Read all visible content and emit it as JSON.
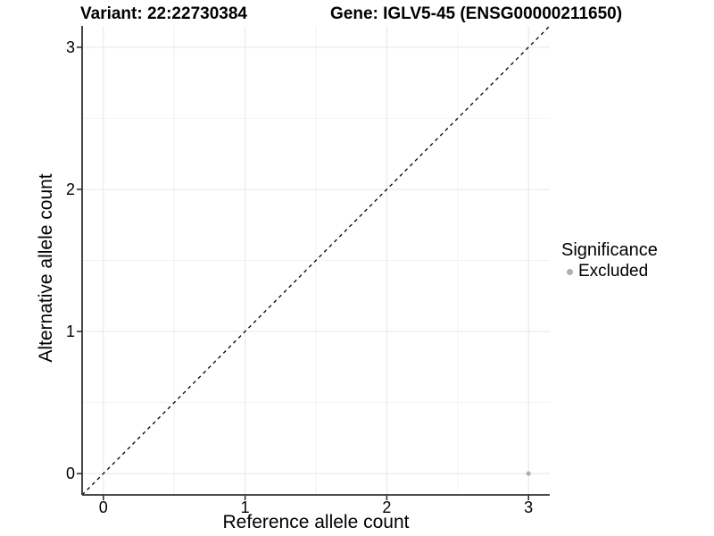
{
  "chart_data": {
    "type": "scatter",
    "title_left": "Variant: 22:22730384",
    "title_right": "Gene: IGLV5-45 (ENSG00000211650)",
    "xlabel": "Reference allele count",
    "ylabel": "Alternative allele count",
    "xlim": [
      -0.15,
      3.15
    ],
    "ylim": [
      -0.15,
      3.15
    ],
    "x_ticks": [
      "0",
      "1",
      "2",
      "3"
    ],
    "y_ticks": [
      "0",
      "1",
      "2",
      "3"
    ],
    "grid": {
      "major": [
        0,
        1,
        2,
        3
      ],
      "minor": [
        0.5,
        1.5,
        2.5
      ],
      "major_color": "#e7e7e7",
      "minor_color": "#f2f2f2"
    },
    "axis_line_color": "#333333",
    "identity_line": {
      "style": "dashed",
      "slope": 1,
      "intercept": 0,
      "color": "#000000",
      "from": [
        -0.15,
        -0.15
      ],
      "to": [
        3.15,
        3.15
      ]
    },
    "series": [
      {
        "name": "Excluded",
        "color": "#b0b0b0",
        "points": [
          {
            "x": 3,
            "y": 0
          }
        ]
      }
    ],
    "legend": {
      "title": "Significance",
      "position": "right",
      "items": [
        {
          "label": "Excluded",
          "color": "#b0b0b0",
          "marker": "dot"
        }
      ]
    }
  }
}
